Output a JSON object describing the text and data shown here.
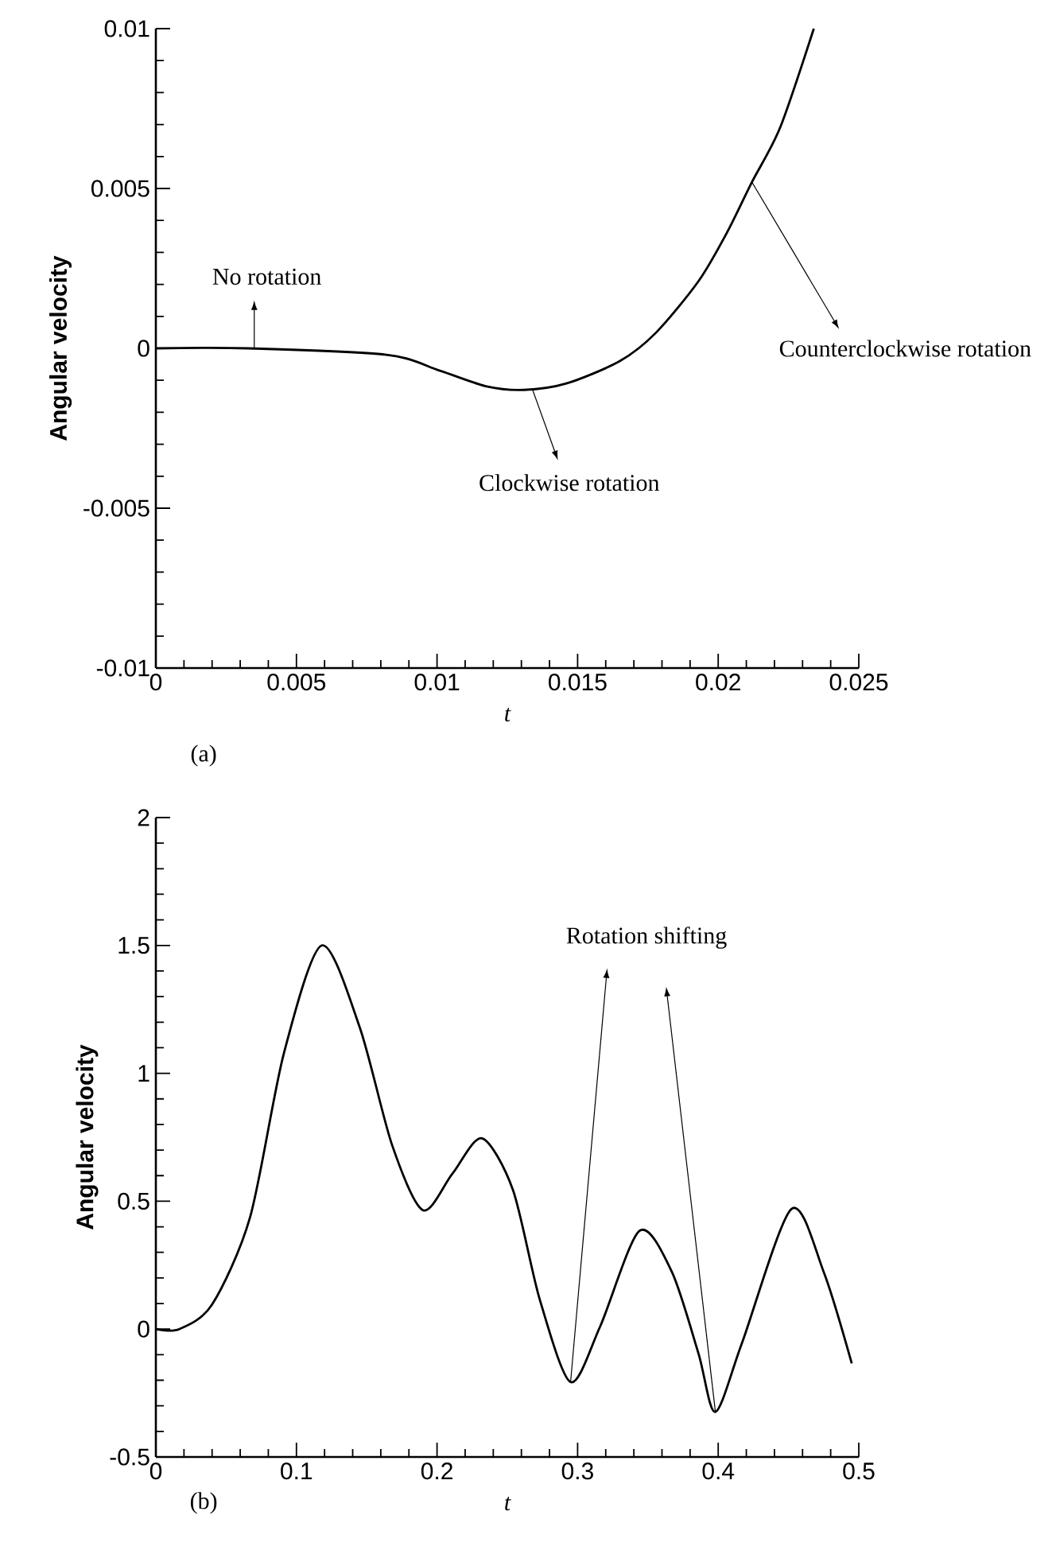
{
  "chart_data": [
    {
      "type": "line",
      "xlabel": "t",
      "ylabel": "Angular velocity",
      "xlim": [
        0,
        0.025
      ],
      "ylim": [
        -0.01,
        0.01
      ],
      "xticks": [
        0,
        0.005,
        0.01,
        0.015,
        0.02,
        0.025
      ],
      "yticks": [
        -0.01,
        -0.005,
        0,
        0.005,
        0.01
      ],
      "x": [
        0,
        0.00327,
        0.0082,
        0.0101,
        0.0118,
        0.0131,
        0.0146,
        0.0165,
        0.0178,
        0.0193,
        0.0203,
        0.0212,
        0.0222,
        0.0234
      ],
      "series": [
        {
          "color": "#000000",
          "values": [
            0,
            0,
            -0.0002,
            -0.0007,
            -0.0012,
            -0.0013,
            -0.0011,
            -0.0004,
            0.0005,
            0.0021,
            0.0036,
            0.0052,
            0.0069,
            0.01
          ]
        }
      ],
      "annotations": [
        {
          "text": "No rotation",
          "x": 0.0035,
          "y": 0
        },
        {
          "text": "Clockwise rotation",
          "x": 0.0134,
          "y": -0.0013
        },
        {
          "text": "Counterclockwise rotation",
          "x": 0.0212,
          "y": 0.0052
        },
        "(a)"
      ]
    },
    {
      "type": "line",
      "xlabel": "t",
      "ylabel": "Angular velocity",
      "xlim": [
        0,
        0.5
      ],
      "ylim": [
        -0.5,
        2
      ],
      "xticks": [
        0,
        0.1,
        0.2,
        0.3,
        0.4,
        0.5
      ],
      "yticks": [
        -0.5,
        0,
        0.5,
        1,
        1.5,
        2
      ],
      "x": [
        0,
        0.0167,
        0.04,
        0.067,
        0.091,
        0.118,
        0.145,
        0.168,
        0.19,
        0.211,
        0.232,
        0.254,
        0.273,
        0.295,
        0.316,
        0.344,
        0.367,
        0.386,
        0.398,
        0.417,
        0.452,
        0.475,
        0.495
      ],
      "series": [
        {
          "color": "#000000",
          "values": [
            0,
            0,
            0.096,
            0.437,
            1.077,
            1.5,
            1.18,
            0.72,
            0.465,
            0.608,
            0.746,
            0.544,
            0.117,
            -0.207,
            0.01,
            0.384,
            0.224,
            -0.096,
            -0.324,
            -0.053,
            0.469,
            0.224,
            -0.134
          ]
        }
      ],
      "annotations": [
        {
          "text": "Rotation shifting",
          "x": 0.295,
          "y": -0.207
        },
        "(b)"
      ]
    }
  ]
}
